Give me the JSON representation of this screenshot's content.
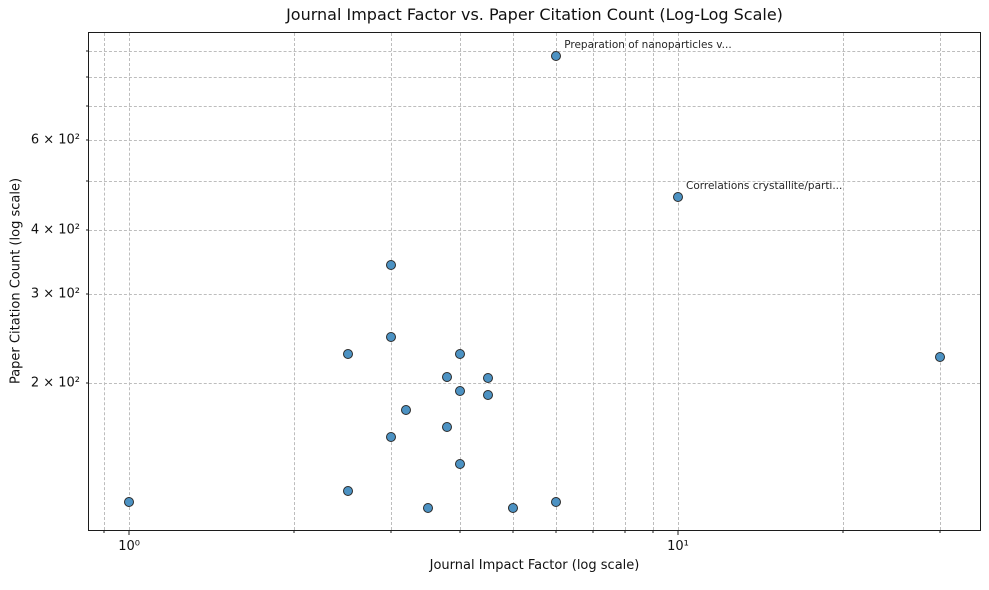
{
  "chart_data": {
    "type": "scatter",
    "title": "Journal Impact Factor vs. Paper Citation Count (Log-Log Scale)",
    "xlabel": "Journal Impact Factor (log scale)",
    "ylabel": "Paper Citation Count (log scale)",
    "xscale": "log",
    "yscale": "log",
    "xlim": [
      0.845,
      35.5
    ],
    "ylim": [
      103,
      975
    ],
    "grid": true,
    "legend": "none",
    "marker": {
      "fill": "#4c92c3",
      "edge": "#2b2b2b"
    },
    "x_gridlines": [
      0.9,
      1,
      2,
      3,
      4,
      5,
      6,
      7,
      8,
      9,
      10,
      20,
      30
    ],
    "y_gridlines": [
      200,
      300,
      400,
      500,
      600,
      700,
      800,
      900
    ],
    "x_ticks": [
      {
        "v": 1,
        "label": "10⁰"
      },
      {
        "v": 10,
        "label": "10¹"
      }
    ],
    "y_ticks": [
      {
        "v": 200,
        "label": "2 × 10²"
      },
      {
        "v": 300,
        "label": "3 × 10²"
      },
      {
        "v": 400,
        "label": "4 × 10²"
      },
      {
        "v": 600,
        "label": "6 × 10²"
      }
    ],
    "annotation_offset": [
      8,
      -17
    ],
    "points": [
      {
        "x": 1.0,
        "y": 117
      },
      {
        "x": 2.5,
        "y": 228
      },
      {
        "x": 2.5,
        "y": 123
      },
      {
        "x": 3.0,
        "y": 341
      },
      {
        "x": 3.0,
        "y": 246
      },
      {
        "x": 3.0,
        "y": 157
      },
      {
        "x": 3.2,
        "y": 177
      },
      {
        "x": 3.5,
        "y": 114
      },
      {
        "x": 3.8,
        "y": 206
      },
      {
        "x": 3.8,
        "y": 164
      },
      {
        "x": 4.0,
        "y": 228
      },
      {
        "x": 4.0,
        "y": 193
      },
      {
        "x": 4.0,
        "y": 139
      },
      {
        "x": 4.5,
        "y": 205
      },
      {
        "x": 4.5,
        "y": 190
      },
      {
        "x": 5.0,
        "y": 114
      },
      {
        "x": 6.0,
        "y": 117
      },
      {
        "x": 6.0,
        "y": 879,
        "label": "Preparation of nanoparticles v..."
      },
      {
        "x": 10.0,
        "y": 465,
        "label": "Correlations crystallite/parti..."
      },
      {
        "x": 30.0,
        "y": 225
      }
    ]
  }
}
